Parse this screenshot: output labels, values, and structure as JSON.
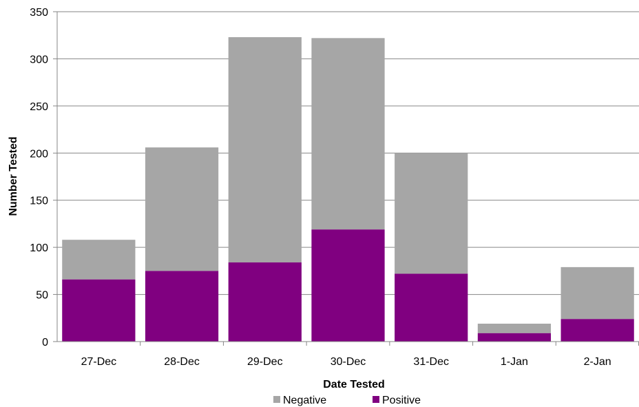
{
  "chart_data": {
    "type": "bar",
    "stacked": true,
    "categories": [
      "27-Dec",
      "28-Dec",
      "29-Dec",
      "30-Dec",
      "31-Dec",
      "1-Jan",
      "2-Jan"
    ],
    "series": [
      {
        "name": "Positive",
        "color": "#800080",
        "values": [
          66,
          75,
          84,
          119,
          72,
          9,
          24
        ]
      },
      {
        "name": "Negative",
        "color": "#A6A6A6",
        "values": [
          42,
          131,
          239,
          203,
          128,
          10,
          55
        ]
      }
    ],
    "xlabel": "Date Tested",
    "ylabel": "Number Tested",
    "ylim": [
      0,
      350
    ],
    "yticks": [
      0,
      50,
      100,
      150,
      200,
      250,
      300,
      350
    ],
    "grid": true,
    "legend": {
      "position": "bottom",
      "entries": [
        {
          "label": "Negative",
          "color": "#A6A6A6"
        },
        {
          "label": "Positive",
          "color": "#800080"
        }
      ]
    }
  }
}
